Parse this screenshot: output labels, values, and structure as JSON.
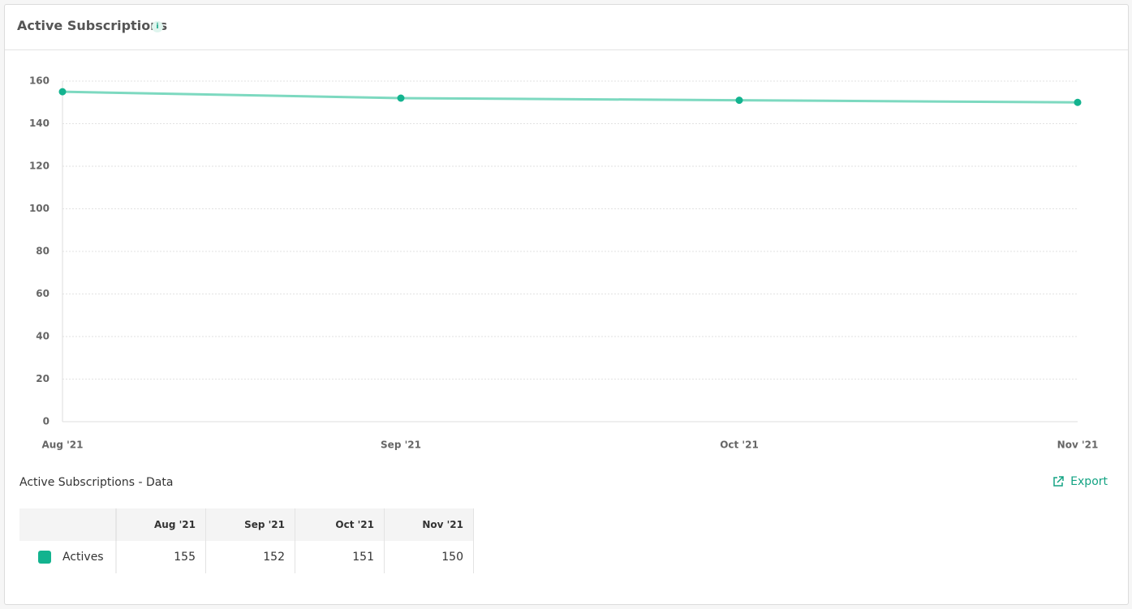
{
  "header": {
    "title": "Active Subscriptions",
    "info": "i"
  },
  "chart_data": {
    "type": "line",
    "categories": [
      "Aug '21",
      "Sep '21",
      "Oct '21",
      "Nov '21"
    ],
    "series": [
      {
        "name": "Actives",
        "color": "#13b38f",
        "line_color": "#7dd9c0",
        "values": [
          155,
          152,
          151,
          150
        ]
      }
    ],
    "ylim": [
      0,
      160
    ],
    "yticks": [
      0,
      20,
      40,
      60,
      80,
      100,
      120,
      140,
      160
    ],
    "grid": true
  },
  "table": {
    "title": "Active Subscriptions - Data",
    "export": "Export"
  }
}
